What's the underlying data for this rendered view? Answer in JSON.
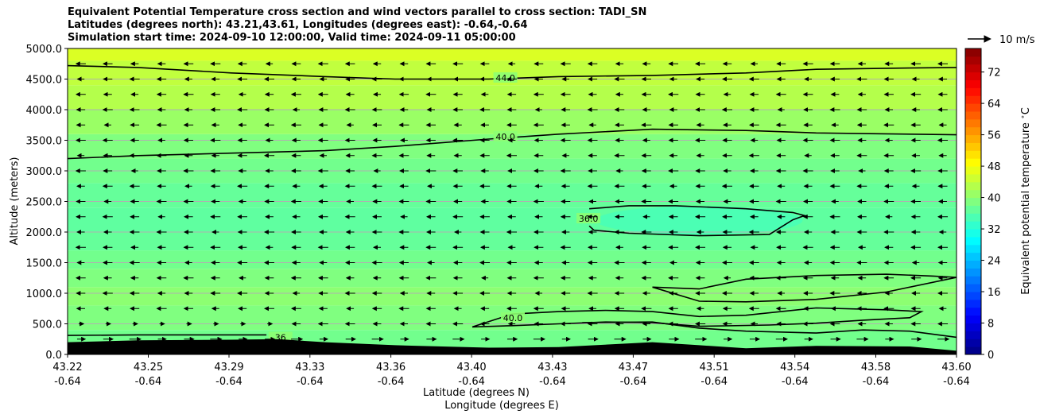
{
  "title_lines": [
    "Equivalent Potential Temperature cross section and wind vectors parallel to cross section: TADI_SN",
    "Latitudes (degrees north): 43.21,43.61, Longitudes (degrees east): -0.64,-0.64",
    "Simulation start time: 2024-09-10 12:00:00, Valid time: 2024-09-11 05:00:00"
  ],
  "chart_data": {
    "type": "heatmap",
    "xlabel": "Latitude (degrees N)",
    "xlabel2": "Longitude (degrees E)",
    "ylabel": "Altitude (meters)",
    "ylim": [
      0,
      5000
    ],
    "yticks": [
      "0.0",
      "500.0",
      "1000.0",
      "1500.0",
      "2000.0",
      "2500.0",
      "3000.0",
      "3500.0",
      "4000.0",
      "4500.0",
      "5000.0"
    ],
    "ytick_values": [
      0,
      500,
      1000,
      1500,
      2000,
      2500,
      3000,
      3500,
      4000,
      4500,
      5000
    ],
    "xlim": [
      43.22,
      43.6
    ],
    "xticks": [
      {
        "lat": "43.22",
        "lon": "-0.64",
        "value": 43.22
      },
      {
        "lat": "43.25",
        "lon": "-0.64",
        "value": 43.2545
      },
      {
        "lat": "43.29",
        "lon": "-0.64",
        "value": 43.289
      },
      {
        "lat": "43.33",
        "lon": "-0.64",
        "value": 43.3236
      },
      {
        "lat": "43.36",
        "lon": "-0.64",
        "value": 43.3582
      },
      {
        "lat": "43.40",
        "lon": "-0.64",
        "value": 43.3927
      },
      {
        "lat": "43.43",
        "lon": "-0.64",
        "value": 43.4273
      },
      {
        "lat": "43.47",
        "lon": "-0.64",
        "value": 43.4618
      },
      {
        "lat": "43.51",
        "lon": "-0.64",
        "value": 43.4964
      },
      {
        "lat": "43.54",
        "lon": "-0.64",
        "value": 43.5309
      },
      {
        "lat": "43.58",
        "lon": "-0.64",
        "value": 43.5655
      },
      {
        "lat": "43.60",
        "lon": "-0.64",
        "value": 43.6
      }
    ],
    "grid": "horizontal",
    "colorbar": {
      "label": "Equivalent potential temperature $^\\circ$C",
      "range": [
        0,
        78
      ],
      "ticks": [
        "0",
        "8",
        "16",
        "24",
        "32",
        "40",
        "48",
        "56",
        "64",
        "72"
      ],
      "tick_values": [
        0,
        8,
        16,
        24,
        32,
        40,
        48,
        56,
        64,
        72
      ],
      "colormap": "jet"
    },
    "wind_key": {
      "label": "10 m/s",
      "speed": 10
    },
    "contours": [
      {
        "level": 44,
        "label": "44.0",
        "points": [
          [
            43.22,
            4720
          ],
          [
            43.25,
            4690
          ],
          [
            43.29,
            4600
          ],
          [
            43.33,
            4540
          ],
          [
            43.36,
            4500
          ],
          [
            43.4,
            4500
          ],
          [
            43.43,
            4540
          ],
          [
            43.47,
            4560
          ],
          [
            43.51,
            4600
          ],
          [
            43.54,
            4660
          ],
          [
            43.58,
            4680
          ],
          [
            43.6,
            4690
          ]
        ]
      },
      {
        "level": 40,
        "label": "40.0",
        "points": [
          [
            43.22,
            3200
          ],
          [
            43.25,
            3250
          ],
          [
            43.29,
            3290
          ],
          [
            43.33,
            3330
          ],
          [
            43.36,
            3400
          ],
          [
            43.4,
            3520
          ],
          [
            43.43,
            3600
          ],
          [
            43.47,
            3680
          ],
          [
            43.51,
            3660
          ],
          [
            43.54,
            3620
          ],
          [
            43.58,
            3600
          ],
          [
            43.6,
            3590
          ]
        ]
      },
      {
        "level": 36,
        "label": "36.0",
        "points": [
          [
            43.443,
            2380
          ],
          [
            43.46,
            2430
          ],
          [
            43.48,
            2430
          ],
          [
            43.51,
            2380
          ],
          [
            43.53,
            2320
          ],
          [
            43.535,
            2270
          ],
          [
            43.53,
            2200
          ],
          [
            43.525,
            2080
          ],
          [
            43.52,
            1960
          ],
          [
            43.49,
            1940
          ],
          [
            43.46,
            1980
          ],
          [
            43.445,
            2030
          ],
          [
            43.443,
            2100
          ]
        ]
      },
      {
        "level": 40,
        "label": "",
        "points": [
          [
            43.47,
            1100
          ],
          [
            43.49,
            1070
          ],
          [
            43.51,
            1230
          ],
          [
            43.54,
            1290
          ],
          [
            43.57,
            1310
          ],
          [
            43.59,
            1280
          ],
          [
            43.6,
            1260
          ],
          [
            43.57,
            1020
          ],
          [
            43.54,
            900
          ],
          [
            43.51,
            860
          ],
          [
            43.49,
            870
          ],
          [
            43.47,
            1100
          ]
        ]
      },
      {
        "level": 40,
        "label": "40.0",
        "points": [
          [
            43.393,
            450
          ],
          [
            43.41,
            660
          ],
          [
            43.43,
            700
          ],
          [
            43.45,
            720
          ],
          [
            43.47,
            700
          ],
          [
            43.49,
            620
          ],
          [
            43.51,
            640
          ],
          [
            43.54,
            760
          ],
          [
            43.57,
            730
          ],
          [
            43.585,
            700
          ],
          [
            43.58,
            600
          ],
          [
            43.56,
            560
          ],
          [
            43.54,
            510
          ],
          [
            43.52,
            480
          ],
          [
            43.49,
            460
          ],
          [
            43.47,
            520
          ],
          [
            43.45,
            530
          ],
          [
            43.43,
            500
          ],
          [
            43.41,
            470
          ],
          [
            43.393,
            450
          ]
        ]
      },
      {
        "level": 40,
        "label": "",
        "points": [
          [
            43.44,
            520
          ],
          [
            43.47,
            530
          ],
          [
            43.49,
            430
          ],
          [
            43.51,
            380
          ],
          [
            43.54,
            350
          ],
          [
            43.56,
            400
          ],
          [
            43.58,
            380
          ],
          [
            43.6,
            280
          ]
        ]
      },
      {
        "level": 36,
        "label": "36",
        "points": [
          [
            43.22,
            310
          ],
          [
            43.25,
            320
          ],
          [
            43.29,
            320
          ],
          [
            43.305,
            320
          ]
        ]
      }
    ],
    "terrain": [
      [
        43.22,
        200
      ],
      [
        43.25,
        230
      ],
      [
        43.29,
        240
      ],
      [
        43.31,
        250
      ],
      [
        43.33,
        200
      ],
      [
        43.36,
        150
      ],
      [
        43.4,
        110
      ],
      [
        43.43,
        120
      ],
      [
        43.47,
        200
      ],
      [
        43.49,
        150
      ],
      [
        43.51,
        100
      ],
      [
        43.54,
        140
      ],
      [
        43.58,
        130
      ],
      [
        43.6,
        60
      ]
    ],
    "wind_rows_m": [
      250,
      500,
      750,
      1000,
      1250,
      1500,
      1750,
      2000,
      2250,
      2500,
      2750,
      3000,
      3250,
      3500,
      3750,
      4000,
      4250,
      4500,
      4750
    ],
    "wind_cols": 33
  }
}
